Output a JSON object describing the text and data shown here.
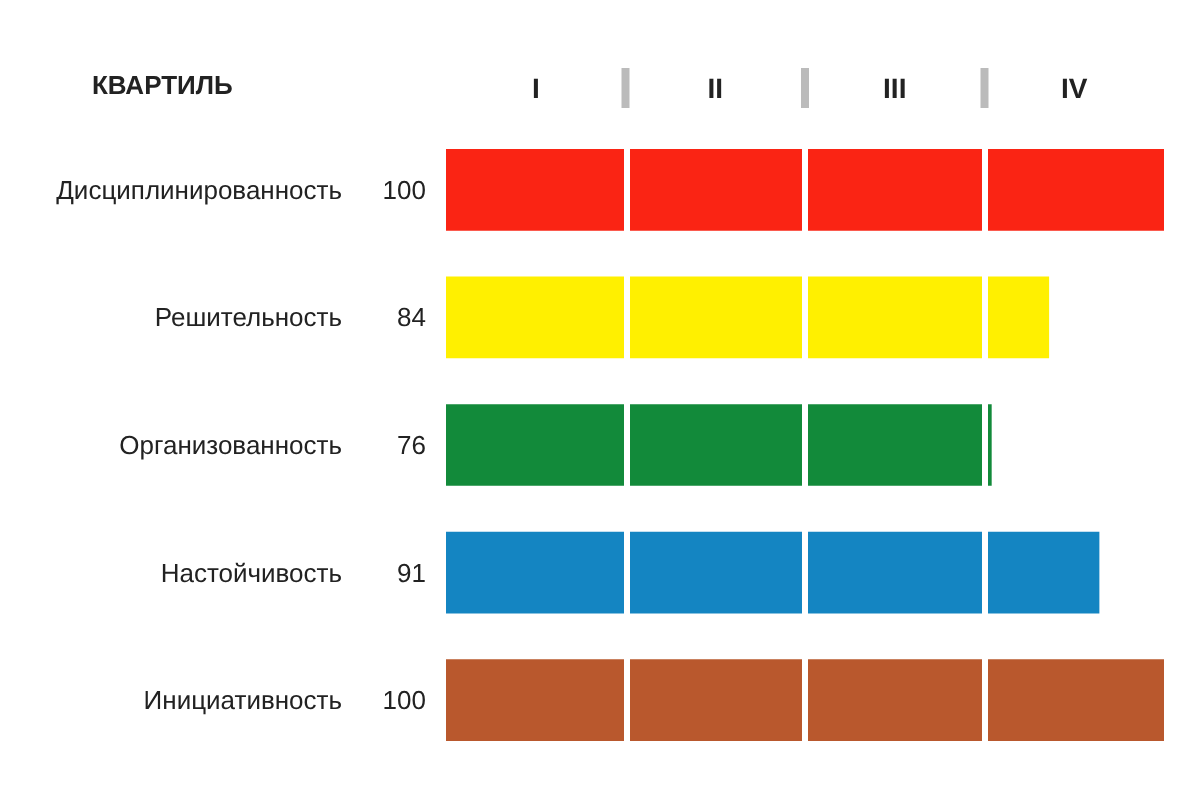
{
  "chart_data": {
    "type": "bar",
    "orientation": "horizontal",
    "ylabel": "КВАРТИЛЬ",
    "categories": [
      "Дисциплинированность",
      "Решительность",
      "Организованность",
      "Настойчивость",
      "Инициативность"
    ],
    "values": [
      100,
      84,
      76,
      91,
      100
    ],
    "colors": [
      "#fa2414",
      "#fff000",
      "#128a3a",
      "#1485c2",
      "#b9582d"
    ],
    "xlim": [
      0,
      100
    ],
    "annotations": [
      "I",
      "II",
      "III",
      "IV"
    ],
    "ref_lines": [
      {
        "axis": "x",
        "value": 25,
        "color": "#ffffff"
      },
      {
        "axis": "x",
        "value": 50,
        "color": "#ffffff"
      },
      {
        "axis": "x",
        "value": 75,
        "color": "#ffffff"
      }
    ],
    "data_labels": true
  }
}
